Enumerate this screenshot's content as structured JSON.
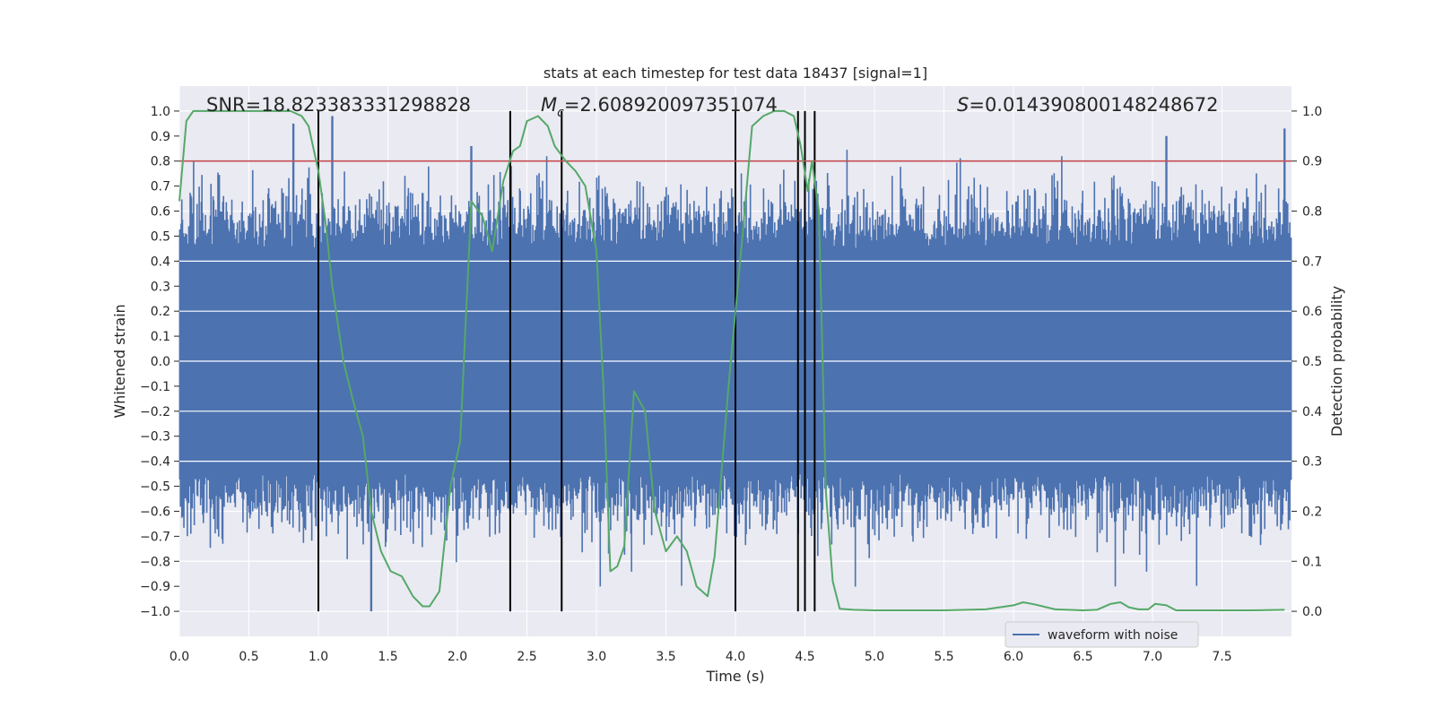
{
  "colors": {
    "background": "#eaeaf2",
    "grid": "#ffffff",
    "waveform": "#4c72b0",
    "probability": "#55a868",
    "threshold": "#c44e52",
    "markers": "#000000",
    "text": "#262626"
  },
  "chart_data": {
    "type": "line",
    "title": "stats at each timestep for test data 18437 [signal=1]",
    "xlabel": "Time (s)",
    "ylabel_left": "Whitened strain",
    "ylabel_right": "Detection probability",
    "xlim": [
      0.0,
      8.0
    ],
    "ylim_left": [
      -1.1,
      1.1
    ],
    "ylim_right": [
      -0.05,
      1.05
    ],
    "xticks": [
      "0.0",
      "0.5",
      "1.0",
      "1.5",
      "2.0",
      "2.5",
      "3.0",
      "3.5",
      "4.0",
      "4.5",
      "5.0",
      "5.5",
      "6.0",
      "6.5",
      "7.0",
      "7.5"
    ],
    "yticks_left": [
      "1.0",
      "0.9",
      "0.8",
      "0.7",
      "0.6",
      "0.5",
      "0.4",
      "0.3",
      "0.2",
      "0.1",
      "0.0",
      "−0.1",
      "−0.2",
      "−0.3",
      "−0.4",
      "−0.5",
      "−0.6",
      "−0.7",
      "−0.8",
      "−0.9",
      "−1.0"
    ],
    "yticks_right": [
      "1.0",
      "0.9",
      "0.8",
      "0.7",
      "0.6",
      "0.5",
      "0.4",
      "0.3",
      "0.2",
      "0.1",
      "0.0"
    ],
    "annotations": {
      "snr": "SNR=18.823383331298828",
      "mc_symbol": "M",
      "mc_sub": "c",
      "mc_value": "=2.608920097351074",
      "s_symbol": "S",
      "s_value": "=0.014390800148248672"
    },
    "legend": {
      "label": "waveform with noise",
      "position": "lower-right"
    },
    "threshold_probability": 0.9,
    "vertical_markers": [
      1.0,
      2.38,
      2.75,
      4.0,
      4.45,
      4.5,
      4.57
    ],
    "waveform": {
      "name": "waveform with noise",
      "sample_count": 1600,
      "typical_envelope": [
        -0.45,
        0.45
      ],
      "notable_peaks": [
        {
          "t": 0.82,
          "v": 0.95
        },
        {
          "t": 1.1,
          "v": 0.98
        },
        {
          "t": 1.38,
          "v": -1.0
        },
        {
          "t": 2.1,
          "v": 0.86
        },
        {
          "t": 7.1,
          "v": 0.9
        },
        {
          "t": 7.95,
          "v": 0.93
        }
      ]
    },
    "probability_series": {
      "name": "detection probability",
      "t": [
        0.0,
        0.05,
        0.1,
        0.2,
        0.3,
        0.5,
        0.7,
        0.8,
        0.88,
        0.93,
        1.0,
        1.05,
        1.1,
        1.18,
        1.25,
        1.32,
        1.38,
        1.45,
        1.52,
        1.6,
        1.68,
        1.75,
        1.8,
        1.87,
        1.95,
        2.02,
        2.1,
        2.18,
        2.25,
        2.33,
        2.4,
        2.45,
        2.5,
        2.58,
        2.65,
        2.7,
        2.78,
        2.85,
        2.92,
        3.0,
        3.05,
        3.1,
        3.15,
        3.2,
        3.27,
        3.35,
        3.42,
        3.5,
        3.58,
        3.65,
        3.72,
        3.8,
        3.85,
        3.95,
        4.05,
        4.12,
        4.2,
        4.28,
        4.35,
        4.42,
        4.47,
        4.52,
        4.55,
        4.6,
        4.65,
        4.7,
        4.75,
        4.85,
        5.0,
        5.5,
        5.8,
        6.0,
        6.07,
        6.15,
        6.3,
        6.5,
        6.6,
        6.7,
        6.77,
        6.83,
        6.9,
        6.97,
        7.02,
        7.1,
        7.17,
        7.3,
        7.5,
        7.7,
        7.95
      ],
      "p": [
        0.82,
        0.98,
        1.0,
        1.0,
        1.0,
        1.0,
        1.0,
        1.0,
        0.99,
        0.97,
        0.88,
        0.78,
        0.65,
        0.5,
        0.42,
        0.35,
        0.2,
        0.12,
        0.08,
        0.07,
        0.03,
        0.01,
        0.01,
        0.04,
        0.25,
        0.34,
        0.82,
        0.79,
        0.72,
        0.86,
        0.92,
        0.93,
        0.98,
        0.99,
        0.97,
        0.93,
        0.9,
        0.88,
        0.85,
        0.72,
        0.45,
        0.08,
        0.09,
        0.13,
        0.44,
        0.4,
        0.2,
        0.12,
        0.15,
        0.12,
        0.05,
        0.03,
        0.11,
        0.45,
        0.75,
        0.97,
        0.99,
        1.0,
        1.0,
        0.99,
        0.93,
        0.84,
        0.9,
        0.8,
        0.24,
        0.06,
        0.005,
        0.003,
        0.002,
        0.002,
        0.004,
        0.012,
        0.018,
        0.014,
        0.004,
        0.002,
        0.003,
        0.015,
        0.018,
        0.008,
        0.004,
        0.004,
        0.015,
        0.012,
        0.002,
        0.002,
        0.002,
        0.002,
        0.003
      ]
    }
  }
}
